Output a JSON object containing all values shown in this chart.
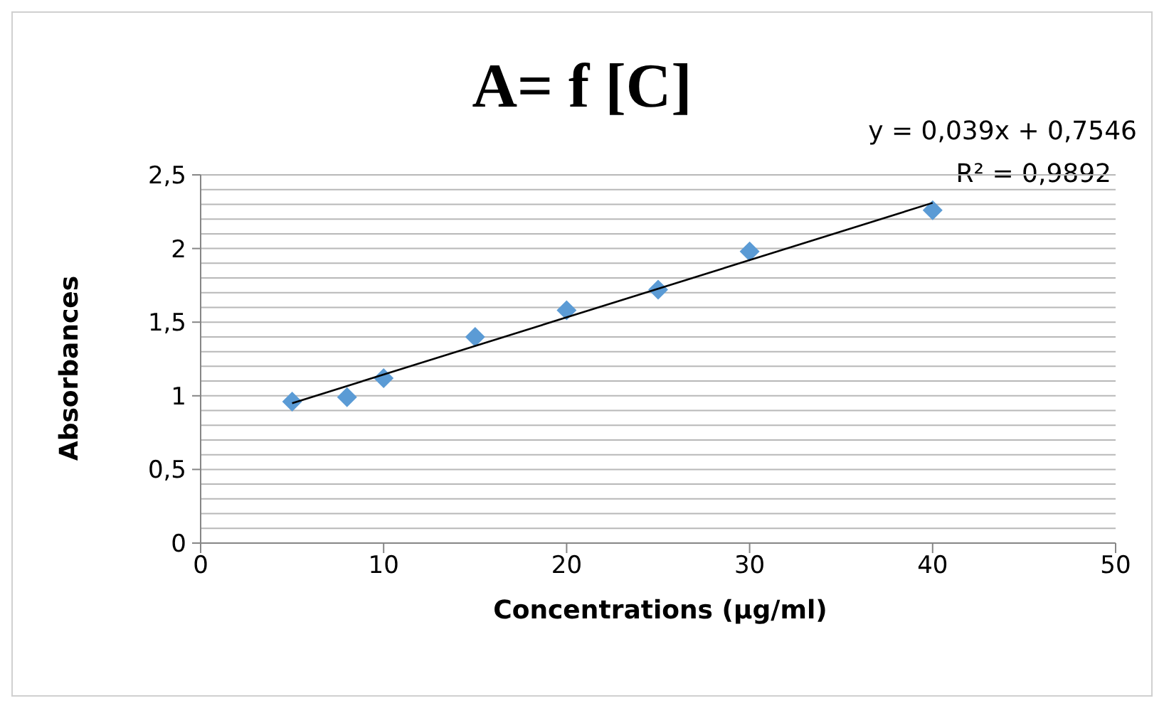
{
  "chart_data": {
    "type": "scatter",
    "title": "A= f [C]",
    "xlabel": "Concentrations (µg/ml)",
    "ylabel": "Absorbances",
    "annotations": [
      "y = 0,039x + 0,7546",
      "R² = 0,9892"
    ],
    "x": [
      5,
      8,
      10,
      15,
      20,
      25,
      30,
      40
    ],
    "series": [
      {
        "type": "scatter",
        "color": "#5b9bd5",
        "values": [
          0.96,
          0.99,
          1.12,
          1.4,
          1.58,
          1.72,
          1.98,
          2.26
        ],
        "marker": "diamond"
      },
      {
        "type": "line",
        "color": "#000000",
        "x": [
          5,
          40
        ],
        "values": [
          0.95,
          2.31
        ],
        "marker": "none"
      }
    ],
    "xlim": [
      0,
      50
    ],
    "xticks": [
      0,
      10,
      20,
      30,
      40,
      50
    ],
    "ylim": [
      0,
      2.5
    ],
    "yticks": [
      0,
      {
        "value": 0.1,
        "label": null
      },
      {
        "value": 0.2,
        "label": null
      },
      {
        "value": 0.3,
        "label": null
      },
      {
        "value": 0.4,
        "label": null
      },
      {
        "value": 0.5,
        "label": "0,5"
      },
      {
        "value": 0.6,
        "label": null
      },
      {
        "value": 0.7,
        "label": null
      },
      {
        "value": 0.8,
        "label": null
      },
      {
        "value": 0.9,
        "label": null
      },
      1,
      {
        "value": 1.1,
        "label": null
      },
      {
        "value": 1.2,
        "label": null
      },
      {
        "value": 1.3,
        "label": null
      },
      {
        "value": 1.4,
        "label": null
      },
      {
        "value": 1.5,
        "label": "1,5"
      },
      {
        "value": 1.6,
        "label": null
      },
      {
        "value": 1.7,
        "label": null
      },
      {
        "value": 1.8,
        "label": null
      },
      {
        "value": 1.9,
        "label": null
      },
      2,
      {
        "value": 2.1,
        "label": null
      },
      {
        "value": 2.2,
        "label": null
      },
      {
        "value": 2.3,
        "label": null
      },
      {
        "value": 2.4,
        "label": null
      },
      {
        "value": 2.5,
        "label": "2,5"
      }
    ],
    "grid": "y",
    "legend": false
  }
}
